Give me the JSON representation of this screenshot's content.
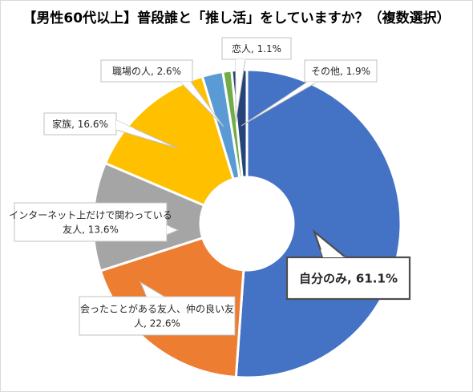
{
  "chart_data": {
    "type": "pie",
    "title": "【男性60代以上】普段誰と「推し活」をしていますか？（複数選択）",
    "series": [
      {
        "label": "自分のみ, 61.1%",
        "value": 61.1,
        "color": "#4472C4"
      },
      {
        "label": "会ったことがある友人、仲の良い友人, 22.6%",
        "value": 22.6,
        "color": "#ED7D31"
      },
      {
        "label": "インターネット上だけで関わっている友人, 13.6%",
        "value": 13.6,
        "color": "#A5A5A5"
      },
      {
        "label": "家族, 16.6%",
        "value": 16.6,
        "color": "#FFC000"
      },
      {
        "label": "職場の人, 2.6%",
        "value": 2.6,
        "color": "#5B9BD5"
      },
      {
        "label": "恋人, 1.1%",
        "value": 1.1,
        "color": "#70AD47"
      },
      {
        "label": "その他, 1.9%",
        "value": 1.9,
        "color": "#264478"
      }
    ],
    "callouts": {
      "self": [
        "自分のみ, 61.1%"
      ],
      "met_friend": [
        "会ったことがある友人、仲の良い友",
        "人, 22.6%"
      ],
      "internet_friend": [
        "インターネット上だけで関わっている",
        "友人, 13.6%"
      ],
      "family": [
        "家族, 16.6%"
      ],
      "coworker": [
        "職場の人, 2.6%"
      ],
      "lover": [
        "恋人, 1.1%"
      ],
      "other": [
        "その他, 1.9%"
      ]
    }
  }
}
